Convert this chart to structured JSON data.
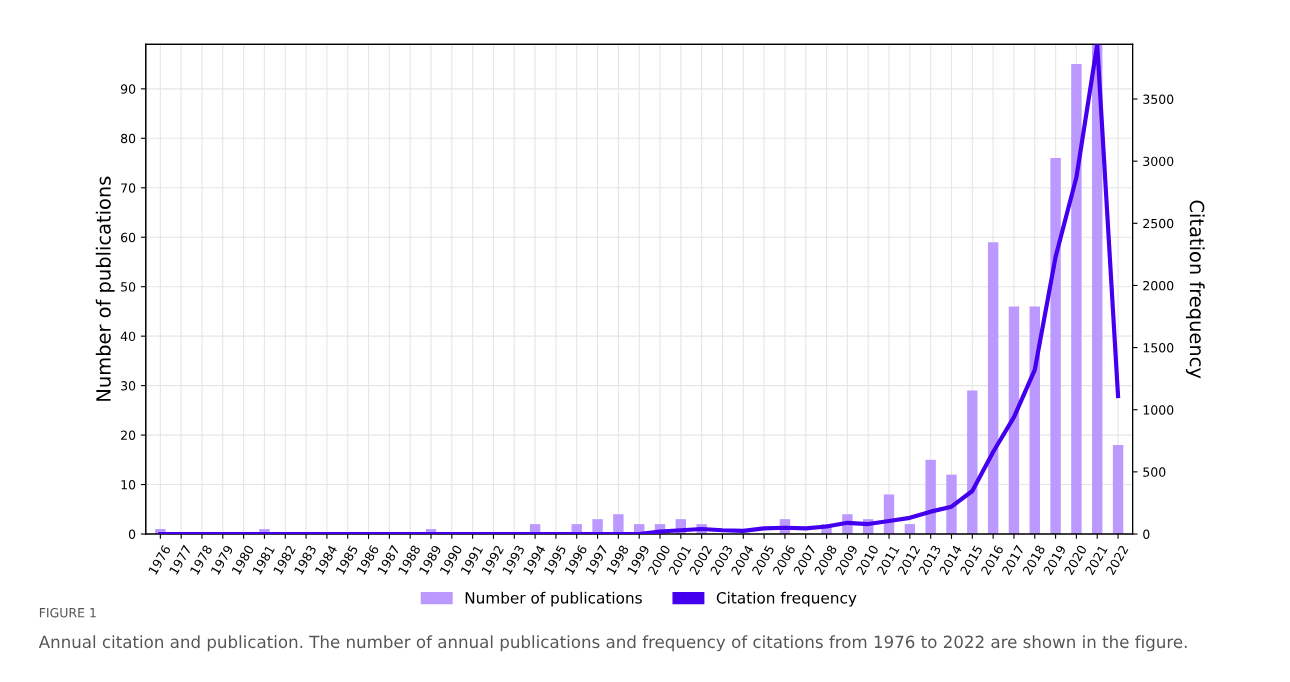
{
  "chart_data": {
    "type": "bar",
    "categories": [
      "1976",
      "1977",
      "1978",
      "1979",
      "1980",
      "1981",
      "1982",
      "1983",
      "1984",
      "1985",
      "1986",
      "1987",
      "1988",
      "1989",
      "1990",
      "1991",
      "1992",
      "1993",
      "1994",
      "1995",
      "1996",
      "1997",
      "1998",
      "1999",
      "2000",
      "2001",
      "2002",
      "2003",
      "2004",
      "2005",
      "2006",
      "2007",
      "2008",
      "2009",
      "2010",
      "2011",
      "2012",
      "2013",
      "2014",
      "2015",
      "2016",
      "2017",
      "2018",
      "2019",
      "2020",
      "2021",
      "2022"
    ],
    "series": [
      {
        "name": "Number of publications",
        "color": "#bb99ff",
        "values": [
          1,
          0,
          0,
          0,
          0,
          1,
          0,
          0,
          0,
          0,
          0,
          0,
          0,
          1,
          0,
          0,
          0,
          0,
          2,
          0,
          2,
          3,
          4,
          2,
          2,
          3,
          2,
          0,
          0,
          0,
          3,
          0,
          2,
          4,
          3,
          8,
          2,
          15,
          12,
          29,
          59,
          46,
          46,
          76,
          95,
          99,
          18
        ]
      },
      {
        "name": "Citation frequency",
        "type": "line",
        "axis": "y2",
        "color": "#4400ee",
        "values": [
          0,
          0,
          0,
          0,
          0,
          0,
          0,
          0,
          0,
          0,
          0,
          0,
          0,
          0,
          0,
          0,
          0,
          0,
          0,
          0,
          0,
          0,
          0,
          0,
          20,
          30,
          40,
          30,
          25,
          45,
          50,
          45,
          60,
          90,
          80,
          105,
          130,
          180,
          220,
          346,
          660,
          940,
          1320,
          2230,
          2870,
          3940,
          1110
        ]
      }
    ],
    "ylabel": "Number of publications",
    "y2label": "Citation frequency",
    "ylim": [
      0,
      99
    ],
    "yticks": [
      0,
      10,
      20,
      30,
      40,
      50,
      60,
      70,
      80,
      90
    ],
    "y2lim": [
      0,
      3940
    ],
    "y2ticks": [
      0,
      500,
      1000,
      1500,
      2000,
      2500,
      3000,
      3500
    ],
    "grid": true,
    "legend": "bottom",
    "annotations": [
      "FIGURE 1",
      "Annual citation and publication. The number of annual publications and frequency of citations from 1976 to 2022 are shown in the figure."
    ]
  }
}
